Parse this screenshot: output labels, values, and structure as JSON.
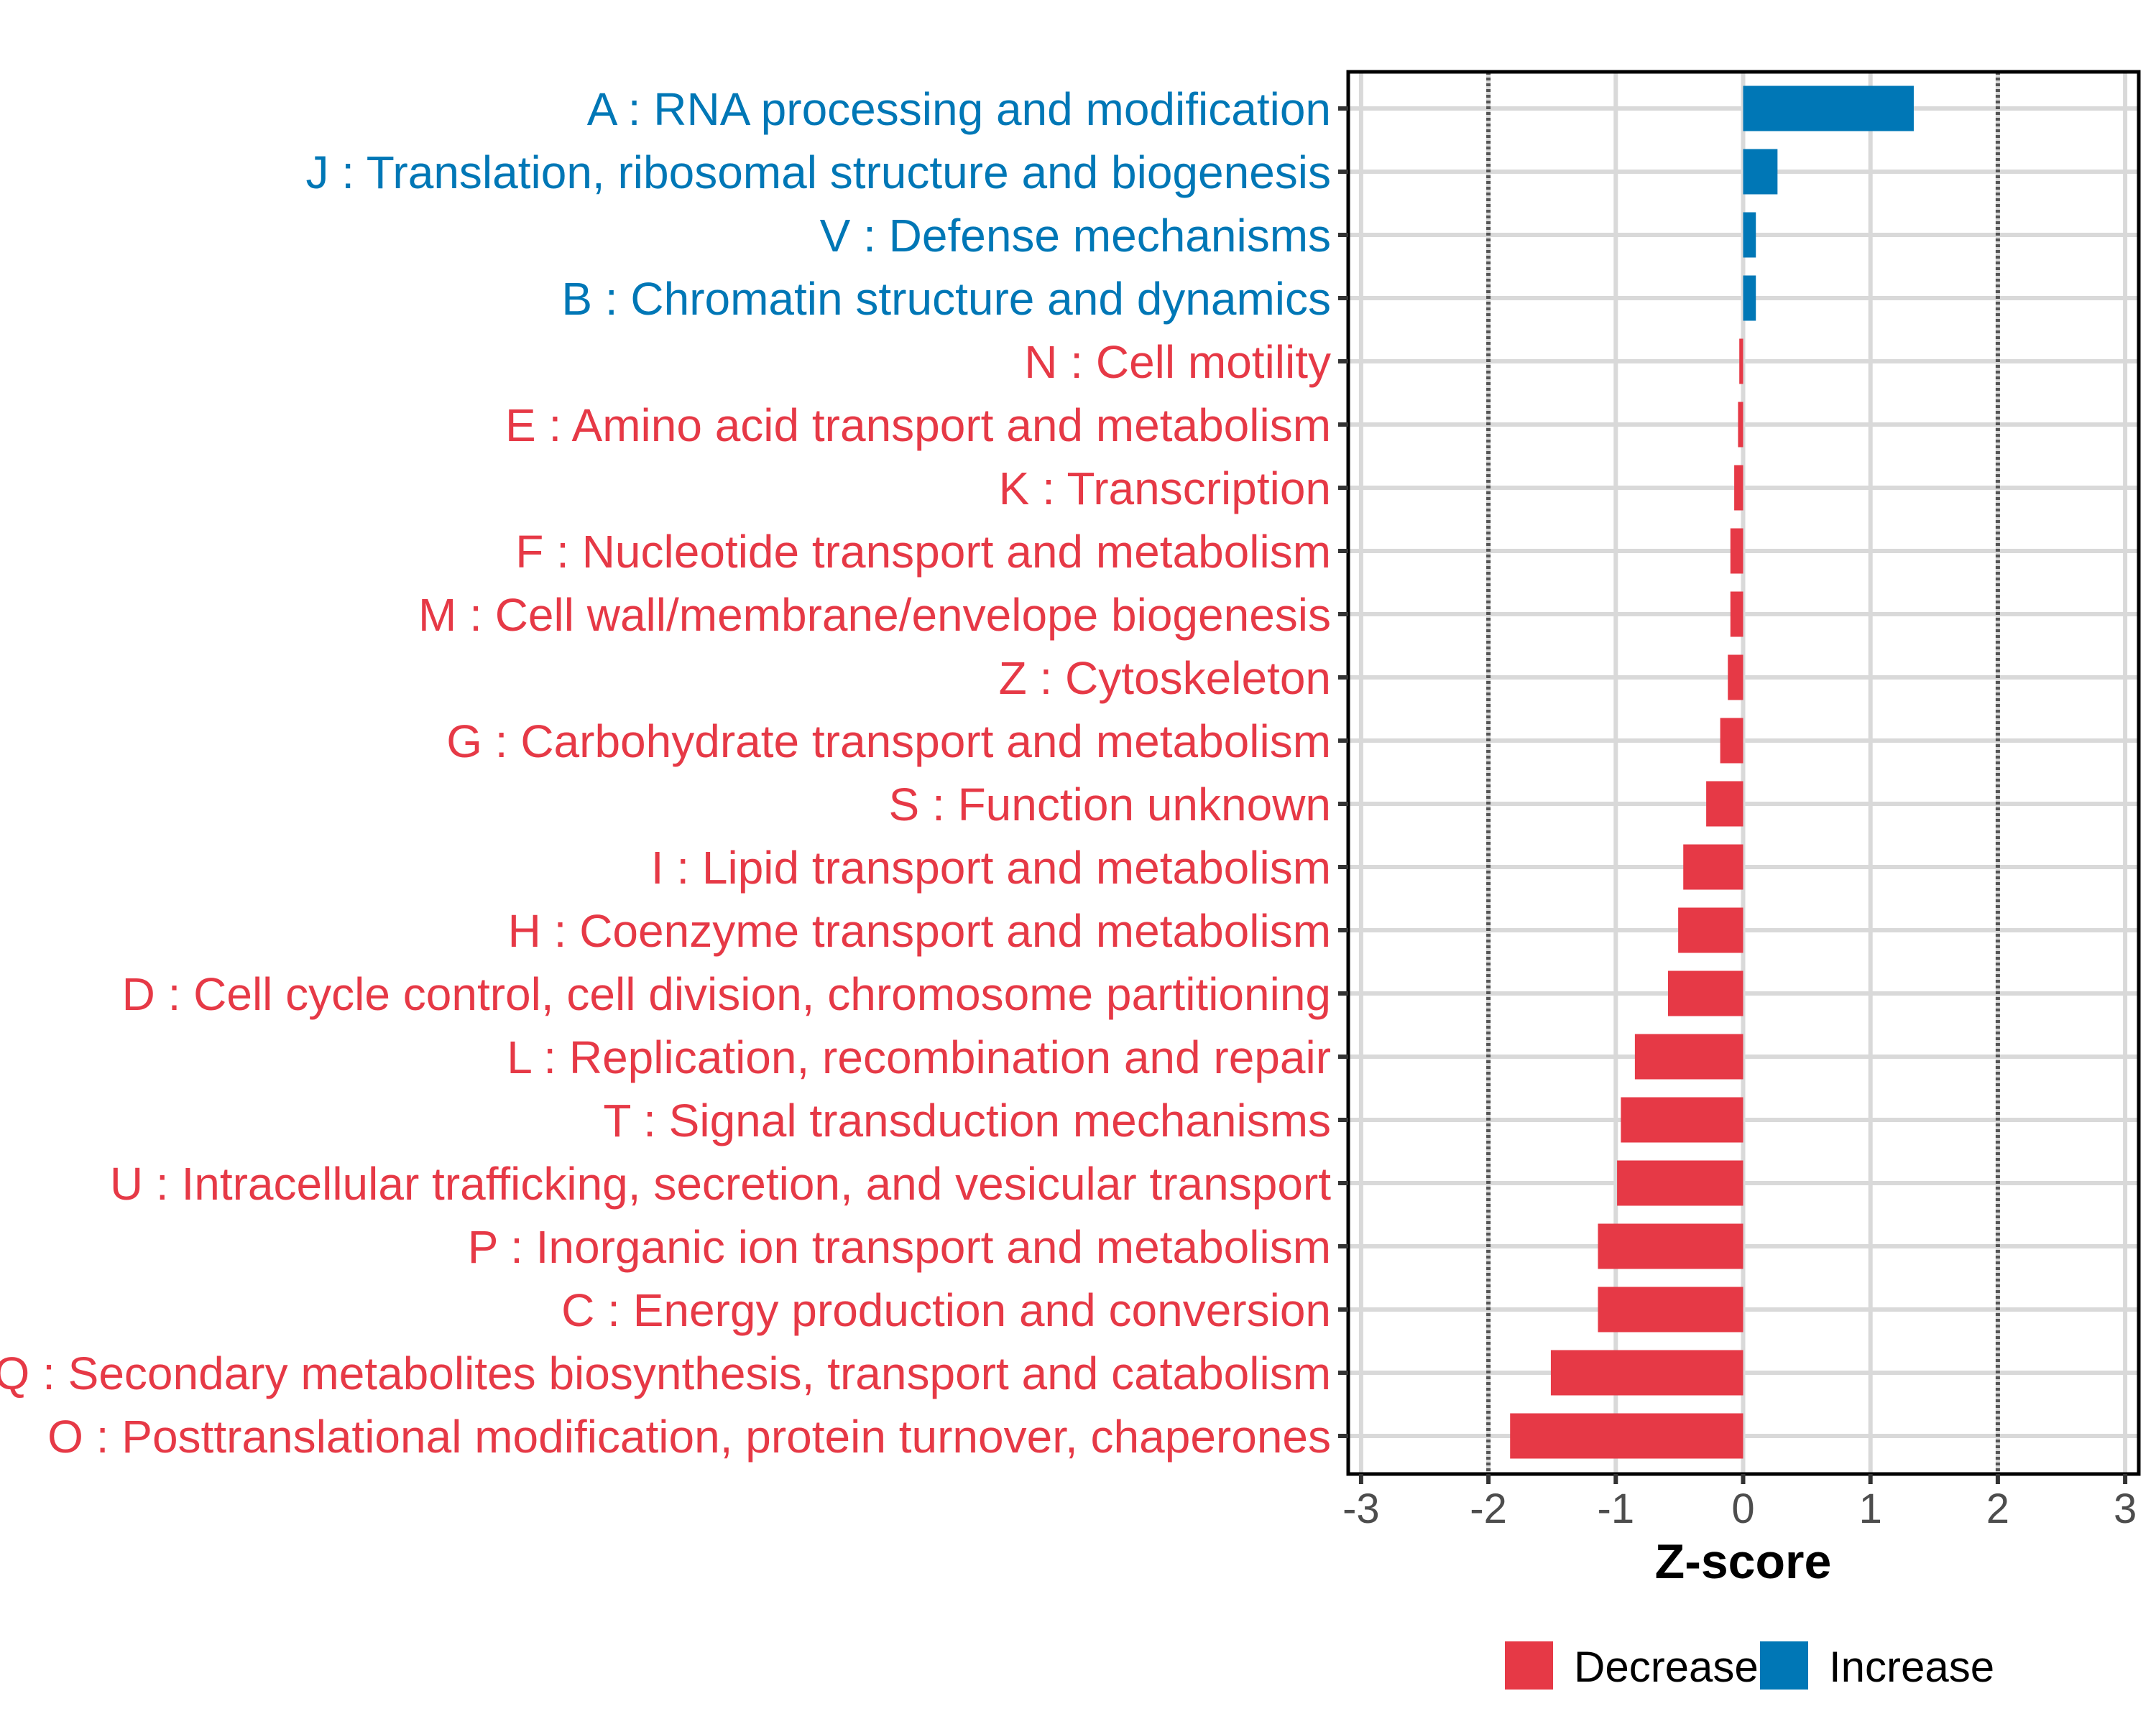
{
  "chart_data": {
    "type": "bar",
    "orientation": "horizontal",
    "title": "",
    "xlabel": "Z-score",
    "ylabel": "",
    "xlim": [
      -3.1,
      3.1
    ],
    "xticks": [
      -3,
      -2,
      -1,
      0,
      1,
      2,
      3
    ],
    "xtick_labels": [
      "-3",
      "-2",
      "-1",
      "0",
      "1",
      "2",
      "3"
    ],
    "reference_lines": [
      -2,
      2
    ],
    "grid": true,
    "legend_position": "bottom",
    "colors": {
      "Decrease": "#E63946",
      "Increase": "#0077B6"
    },
    "legend": [
      {
        "label": "Decrease",
        "color": "#E63946"
      },
      {
        "label": "Increase",
        "color": "#0077B6"
      }
    ],
    "categories": [
      "A : RNA processing and modification",
      "J : Translation, ribosomal structure and biogenesis",
      "V : Defense mechanisms",
      "B : Chromatin structure and dynamics",
      "N : Cell motility",
      "E : Amino acid transport and metabolism",
      "K : Transcription",
      "F : Nucleotide transport and metabolism",
      "M : Cell wall/membrane/envelope biogenesis",
      "Z : Cytoskeleton",
      "G : Carbohydrate transport and metabolism",
      "S : Function unknown",
      "I : Lipid transport and metabolism",
      "H : Coenzyme transport and metabolism",
      "D : Cell cycle control, cell division, chromosome partitioning",
      "L : Replication, recombination and repair",
      "T : Signal transduction mechanisms",
      "U : Intracellular trafficking, secretion, and vesicular transport",
      "P : Inorganic ion transport and metabolism",
      "C : Energy production and conversion",
      "Q : Secondary metabolites biosynthesis, transport and catabolism",
      "O : Posttranslational modification, protein turnover, chaperones"
    ],
    "values": [
      1.34,
      0.27,
      0.1,
      0.1,
      -0.03,
      -0.04,
      -0.07,
      -0.1,
      -0.1,
      -0.12,
      -0.18,
      -0.29,
      -0.47,
      -0.51,
      -0.59,
      -0.85,
      -0.96,
      -0.99,
      -1.14,
      -1.14,
      -1.51,
      -1.83
    ],
    "groups": [
      "Increase",
      "Increase",
      "Increase",
      "Increase",
      "Decrease",
      "Decrease",
      "Decrease",
      "Decrease",
      "Decrease",
      "Decrease",
      "Decrease",
      "Decrease",
      "Decrease",
      "Decrease",
      "Decrease",
      "Decrease",
      "Decrease",
      "Decrease",
      "Decrease",
      "Decrease",
      "Decrease",
      "Decrease"
    ]
  }
}
